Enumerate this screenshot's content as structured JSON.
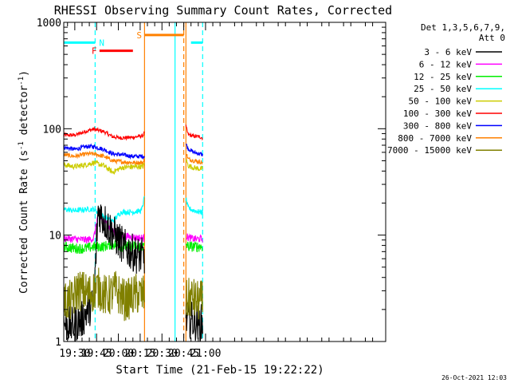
{
  "chart_data": {
    "type": "line",
    "title": "RHESSI Observing Summary Count Rates, Corrected",
    "xlabel": "Start Time (21-Feb-15 19:22:22)",
    "ylabel": "Corrected Count Rate (s",
    "ylabel_sup1": "-1",
    "ylabel_mid": " detector",
    "ylabel_sup2": "-1",
    "ylabel_end": ")",
    "yscale": "log",
    "ylim": [
      1,
      1000
    ],
    "xlim_min": [
      1162.4,
      1384.0
    ],
    "y_ticks": [
      {
        "value": 1,
        "label": "1"
      },
      {
        "value": 10,
        "label": "10"
      },
      {
        "value": 100,
        "label": "100"
      },
      {
        "value": 1000,
        "label": "1000"
      }
    ],
    "x_ticks": [
      {
        "min": 1170,
        "label": "19:30"
      },
      {
        "min": 1185,
        "label": "19:45"
      },
      {
        "min": 1200,
        "label": "20:00"
      },
      {
        "min": 1215,
        "label": "20:15"
      },
      {
        "min": 1230,
        "label": "20:30"
      },
      {
        "min": 1245,
        "label": "20:45"
      },
      {
        "min": 1260,
        "label": "21:00"
      }
    ],
    "legend": {
      "position": "right",
      "header1": "Det 1,3,5,6,7,9,",
      "header2": "Att 0",
      "items": [
        {
          "label": "3 - 6 keV",
          "color": "#000000"
        },
        {
          "label": "6 - 12 keV",
          "color": "#ff00ff"
        },
        {
          "label": "12 - 25 keV",
          "color": "#00ee00"
        },
        {
          "label": "25 - 50 keV",
          "color": "#00ffff"
        },
        {
          "label": "50 - 100 keV",
          "color": "#cccc00"
        },
        {
          "label": "100 - 300 keV",
          "color": "#ff0000"
        },
        {
          "label": "300 - 800 keV",
          "color": "#0000ff"
        },
        {
          "label": "800 - 7000 keV",
          "color": "#ff8000"
        },
        {
          "label": "7000 - 15000 keV",
          "color": "#808000"
        }
      ]
    },
    "gap": [
      1218.0,
      1246.5
    ],
    "series": [
      {
        "name": "100 - 300 keV",
        "color": "#ff0000",
        "segments": [
          [
            [
              1162.4,
              87
            ],
            [
              1170,
              87
            ],
            [
              1178,
              95
            ],
            [
              1183,
              99
            ],
            [
              1190,
              94
            ],
            [
              1196,
              84
            ],
            [
              1202,
              82
            ],
            [
              1210,
              83
            ],
            [
              1217,
              86
            ],
            [
              1218,
              94
            ]
          ],
          [
            [
              1246.5,
              105
            ],
            [
              1248,
              88
            ],
            [
              1252,
              85
            ],
            [
              1256,
              84
            ],
            [
              1258,
              82
            ]
          ]
        ]
      },
      {
        "name": "300 - 800 keV",
        "color": "#0000ff",
        "segments": [
          [
            [
              1162.4,
              67
            ],
            [
              1170,
              64
            ],
            [
              1178,
              68
            ],
            [
              1183,
              68
            ],
            [
              1190,
              64
            ],
            [
              1196,
              58
            ],
            [
              1202,
              57
            ],
            [
              1210,
              55
            ],
            [
              1217,
              55
            ],
            [
              1218,
              56
            ]
          ],
          [
            [
              1246.5,
              72
            ],
            [
              1248,
              65
            ],
            [
              1252,
              60
            ],
            [
              1256,
              58
            ],
            [
              1258,
              57
            ]
          ]
        ]
      },
      {
        "name": "800 - 7000 keV",
        "color": "#ff8000",
        "segments": [
          [
            [
              1162.4,
              57
            ],
            [
              1170,
              55
            ],
            [
              1178,
              58
            ],
            [
              1183,
              58
            ],
            [
              1190,
              55
            ],
            [
              1196,
              50
            ],
            [
              1202,
              49
            ],
            [
              1210,
              48
            ],
            [
              1217,
              48
            ],
            [
              1218,
              51
            ]
          ],
          [
            [
              1246.5,
              60
            ],
            [
              1248,
              52
            ],
            [
              1252,
              50
            ],
            [
              1256,
              49
            ],
            [
              1258,
              48
            ]
          ]
        ]
      },
      {
        "name": "50 - 100 keV",
        "color": "#cccc00",
        "segments": [
          [
            [
              1162.4,
              46
            ],
            [
              1170,
              44
            ],
            [
              1178,
              46
            ],
            [
              1183,
              48
            ],
            [
              1190,
              45
            ],
            [
              1196,
              39
            ],
            [
              1202,
              43
            ],
            [
              1210,
              44
            ],
            [
              1217,
              44
            ],
            [
              1218,
              47
            ]
          ],
          [
            [
              1246.5,
              52
            ],
            [
              1248,
              45
            ],
            [
              1252,
              43
            ],
            [
              1256,
              42
            ],
            [
              1258,
              42
            ]
          ]
        ]
      },
      {
        "name": "25 - 50 keV",
        "color": "#00ffff",
        "segments": [
          [
            [
              1162.4,
              17.5
            ],
            [
              1170,
              17
            ],
            [
              1178,
              17.5
            ],
            [
              1183,
              17.5
            ],
            [
              1190,
              15
            ],
            [
              1196,
              13.5
            ],
            [
              1202,
              16.5
            ],
            [
              1210,
              16.5
            ],
            [
              1216,
              17
            ],
            [
              1218,
              23
            ]
          ],
          [
            [
              1246.5,
              22
            ],
            [
              1248,
              18
            ],
            [
              1252,
              17
            ],
            [
              1256,
              16.5
            ],
            [
              1258,
              16.5
            ]
          ]
        ]
      },
      {
        "name": "6 - 12 keV",
        "color": "#ff00ff",
        "segments": [
          [
            [
              1162.4,
              9.3
            ],
            [
              1170,
              9.2
            ],
            [
              1178,
              9
            ],
            [
              1183,
              9.3
            ],
            [
              1186,
              15.5
            ],
            [
              1190,
              13.5
            ],
            [
              1196,
              11
            ],
            [
              1202,
              10
            ],
            [
              1210,
              9.5
            ],
            [
              1218,
              9.4
            ]
          ],
          [
            [
              1246.5,
              9.8
            ],
            [
              1248,
              9.5
            ],
            [
              1252,
              9.2
            ],
            [
              1256,
              9.2
            ],
            [
              1258,
              9.2
            ]
          ]
        ]
      },
      {
        "name": "12 - 25 keV",
        "color": "#00ee00",
        "segments": [
          [
            [
              1162.4,
              7.8
            ],
            [
              1170,
              7.5
            ],
            [
              1178,
              7.5
            ],
            [
              1183,
              7.8
            ],
            [
              1190,
              7.8
            ],
            [
              1196,
              8.3
            ],
            [
              1202,
              7.8
            ],
            [
              1210,
              7.8
            ],
            [
              1218,
              7.8
            ]
          ],
          [
            [
              1246.5,
              8.3
            ],
            [
              1248,
              7.8
            ],
            [
              1252,
              7.8
            ],
            [
              1256,
              7.8
            ],
            [
              1258,
              7.8
            ]
          ]
        ]
      },
      {
        "name": "3 - 6 keV",
        "color": "#000000",
        "segments": [
          [
            [
              1162.4,
              1.5
            ],
            [
              1168,
              1.4
            ],
            [
              1175,
              1.6
            ],
            [
              1180,
              2.1
            ],
            [
              1183,
              2.2
            ],
            [
              1186,
              17
            ],
            [
              1190,
              14
            ],
            [
              1195,
              11
            ],
            [
              1200,
              9
            ],
            [
              1205,
              7.5
            ],
            [
              1210,
              6.8
            ],
            [
              1215,
              6.3
            ],
            [
              1218,
              6.3
            ]
          ],
          [
            [
              1246.5,
              1.6
            ],
            [
              1250,
              1.6
            ],
            [
              1254,
              1.5
            ],
            [
              1258,
              1.5
            ]
          ]
        ]
      },
      {
        "name": "7000 - 15000 keV",
        "color": "#808000",
        "segments": [
          [
            [
              1162.4,
              2.4
            ],
            [
              1168,
              2.4
            ],
            [
              1172,
              3.1
            ],
            [
              1180,
              2.8
            ],
            [
              1186,
              3.2
            ],
            [
              1192,
              2.6
            ],
            [
              1198,
              3
            ],
            [
              1205,
              2.4
            ],
            [
              1212,
              2.8
            ],
            [
              1218,
              2.7
            ]
          ],
          [
            [
              1246.5,
              2.4
            ],
            [
              1250,
              2.6
            ],
            [
              1254,
              2.4
            ],
            [
              1258,
              2.4
            ]
          ]
        ]
      }
    ],
    "flags": [
      {
        "label": "N",
        "color": "#00ffff",
        "y": 645,
        "segments": [
          [
            1162.4,
            1184
          ],
          [
            1250,
            1258
          ]
        ]
      },
      {
        "label": "F",
        "color": "#ff0000",
        "y": 540,
        "segments": [
          [
            1187,
            1210
          ]
        ]
      },
      {
        "label": "S",
        "color": "#ff8000",
        "y": 760,
        "segments": [
          [
            1218,
            1245
          ]
        ]
      }
    ],
    "verticals": [
      {
        "min": 1184,
        "color": "#00ffff",
        "dashed": true
      },
      {
        "min": 1218,
        "color": "#ff8000",
        "dashed": false
      },
      {
        "min": 1246.5,
        "color": "#ff8000",
        "dashed": false
      },
      {
        "min": 1245,
        "color": "#ff8000",
        "dashed": true
      },
      {
        "min": 1239,
        "color": "#00ffff",
        "dashed": false
      },
      {
        "min": 1258,
        "color": "#00ffff",
        "dashed": true
      }
    ]
  },
  "footer": {
    "timestamp": "26-Oct-2021 12:03"
  }
}
